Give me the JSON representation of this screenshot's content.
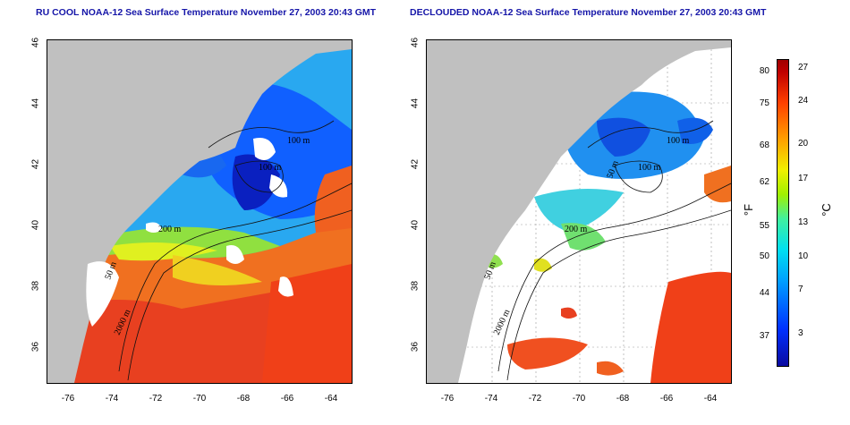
{
  "titles": {
    "left": "RU COOL NOAA-12 Sea Surface Temperature November 27, 2003 20:43 GMT",
    "right": "DECLOUDED NOAA-12 Sea Surface Temperature November 27, 2003 20:43 GMT"
  },
  "axes": {
    "lon_ticks": [
      "-76",
      "-74",
      "-72",
      "-70",
      "-68",
      "-66",
      "-64"
    ],
    "lat_ticks": [
      "46",
      "44",
      "42",
      "40",
      "38",
      "36"
    ]
  },
  "contour_labels": {
    "left": [
      "100 m",
      "100 m",
      "200 m",
      "50 m",
      "2000 m"
    ],
    "right": [
      "100 m",
      "100 m",
      "50 m",
      "200 m",
      "50 m",
      "2000 m"
    ]
  },
  "colorbar": {
    "fahrenheit_ticks": [
      "80",
      "75",
      "68",
      "62",
      "55",
      "50",
      "44",
      "37"
    ],
    "celsius_ticks": [
      "27",
      "24",
      "20",
      "17",
      "13",
      "10",
      "7",
      "3"
    ],
    "unit_f": "°F",
    "unit_c": "°C",
    "range_celsius": [
      0,
      28
    ]
  },
  "colors": {
    "land": "#c0c0c0",
    "no_data": "#ffffff",
    "title": "#1515a8",
    "cold": "#0a0aa0",
    "warm": "#d01000"
  }
}
